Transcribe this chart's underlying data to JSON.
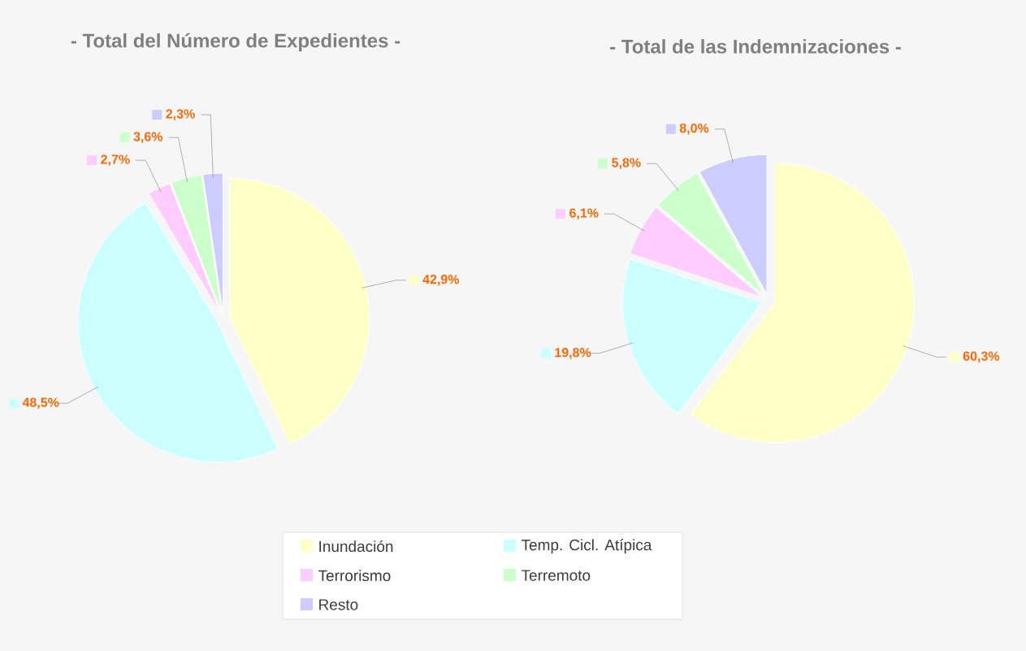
{
  "chart_data": [
    {
      "type": "pie",
      "title": "- Total del Número de Expedientes -",
      "categories": [
        "Inundación",
        "Temp. Cicl. Atípica",
        "Terrorismo",
        "Terremoto",
        "Resto"
      ],
      "values": [
        42.9,
        48.5,
        2.7,
        3.6,
        2.3
      ],
      "value_labels": [
        "42,9%",
        "48,5%",
        "2,7%",
        "3,6%",
        "2,3%"
      ],
      "colors": [
        "#ffffc8",
        "#ccffff",
        "#ffccff",
        "#ccffcc",
        "#ccccff"
      ],
      "legend": "bottom"
    },
    {
      "type": "pie",
      "title": "- Total de las Indemnizaciones -",
      "categories": [
        null,
        null,
        null,
        null,
        null
      ],
      "values": [
        60.3,
        19.8,
        6.1,
        5.8,
        8.0
      ],
      "value_labels": [
        "60,3%",
        "19,8%",
        "6,1%",
        "5,8%",
        "8,0%"
      ],
      "colors": [
        "#ffffc8",
        "#ccffff",
        "#ffccff",
        "#ccffcc",
        "#ccccff"
      ]
    }
  ]
}
